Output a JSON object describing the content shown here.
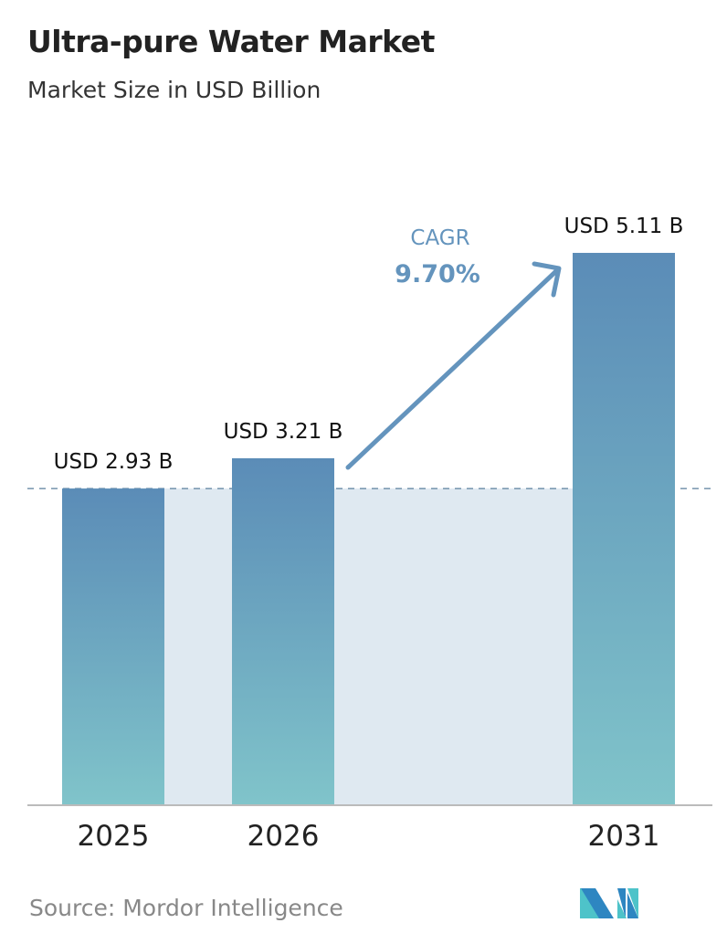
{
  "title": "Ultra-pure Water Market",
  "subtitle": "Market Size in USD Billion",
  "source": "Source:  Mordor Intelligence",
  "logo_text": "MI",
  "chart_data": {
    "type": "bar",
    "categories": [
      "2025",
      "2026",
      "2031"
    ],
    "values": [
      2.93,
      3.21,
      5.11
    ],
    "data_labels": [
      "USD 2.93 B",
      "USD 3.21 B",
      "USD 5.11 B"
    ],
    "ylim": [
      0,
      5.11
    ],
    "grid": false,
    "reference_line": 2.93,
    "annotation": {
      "label": "CAGR",
      "value": "9.70%"
    },
    "colors": {
      "bar_top": "#5b8cb7",
      "bar_bottom": "#80c4ca",
      "band": "#dfe9f1",
      "annotation": "#6494bd"
    }
  }
}
